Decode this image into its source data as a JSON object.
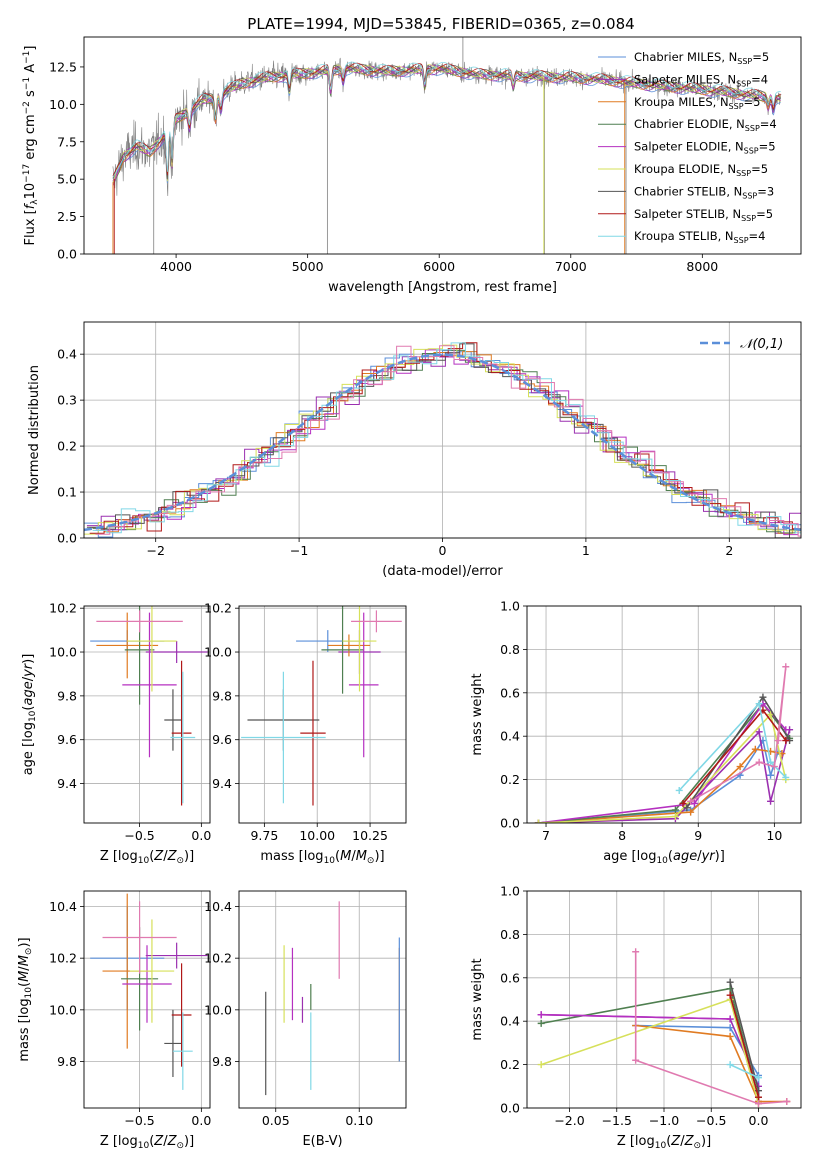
{
  "figure_title": "PLATE=1994, MJD=53845, FIBERID=0365, z=0.084",
  "colors": {
    "chabrier_miles": "#5b8fd9",
    "salpeter_miles": "#9b30b0",
    "kroupa_miles": "#e07b22",
    "chabrier_elodie": "#4f7f50",
    "salpeter_elodie": "#b530c0",
    "kroupa_elodie": "#d6e05a",
    "chabrier_stelib": "#555555",
    "salpeter_stelib": "#b01818",
    "kroupa_stelib": "#80d8e6",
    "data": "#808080",
    "gauss": "#5b8fd9",
    "pink": "#e07ab0"
  },
  "chart_data": [
    {
      "id": "spectrum",
      "type": "line",
      "xlabel": "wavelength [Angstrom, rest frame]",
      "ylabel": "Flux [f_λ 10^-17 erg cm^-2 s^-1 A^-1]",
      "xlim": [
        3300,
        8750
      ],
      "ylim": [
        0,
        14.5
      ],
      "xticks": [
        4000,
        5000,
        6000,
        7000,
        8000
      ],
      "yticks": [
        0.0,
        2.5,
        5.0,
        7.5,
        10.0,
        12.5
      ],
      "legend_position": "top-right",
      "legend": [
        {
          "label": "Chabrier MILES, N",
          "sub": "SSP",
          "suffix": "=5",
          "color_key": "chabrier_miles"
        },
        {
          "label": "Salpeter MILES, N",
          "sub": "SSP",
          "suffix": "=4",
          "color_key": "salpeter_miles"
        },
        {
          "label": "Kroupa MILES, N",
          "sub": "SSP",
          "suffix": "=5",
          "color_key": "kroupa_miles"
        },
        {
          "label": "Chabrier ELODIE, N",
          "sub": "SSP",
          "suffix": "=4",
          "color_key": "chabrier_elodie"
        },
        {
          "label": "Salpeter ELODIE, N",
          "sub": "SSP",
          "suffix": "=5",
          "color_key": "salpeter_elodie"
        },
        {
          "label": "Kroupa ELODIE, N",
          "sub": "SSP",
          "suffix": "=5",
          "color_key": "kroupa_elodie"
        },
        {
          "label": "Chabrier STELIB, N",
          "sub": "SSP",
          "suffix": "=3",
          "color_key": "chabrier_stelib"
        },
        {
          "label": "Salpeter STELIB, N",
          "sub": "SSP",
          "suffix": "=5",
          "color_key": "salpeter_stelib"
        },
        {
          "label": "Kroupa STELIB, N",
          "sub": "SSP",
          "suffix": "=4",
          "color_key": "kroupa_stelib"
        }
      ],
      "continuum": [
        [
          3520,
          4.8
        ],
        [
          3600,
          6.5
        ],
        [
          3700,
          7.2
        ],
        [
          3800,
          6.8
        ],
        [
          3900,
          7.8
        ],
        [
          4000,
          9.0
        ],
        [
          4100,
          9.6
        ],
        [
          4200,
          10.3
        ],
        [
          4300,
          10.4
        ],
        [
          4400,
          11.0
        ],
        [
          4500,
          11.4
        ],
        [
          4700,
          11.8
        ],
        [
          5000,
          12.1
        ],
        [
          5300,
          12.4
        ],
        [
          5600,
          12.2
        ],
        [
          6000,
          12.4
        ],
        [
          6300,
          12.0
        ],
        [
          6600,
          11.9
        ],
        [
          7000,
          11.8
        ],
        [
          7300,
          11.6
        ],
        [
          7600,
          11.3
        ],
        [
          8000,
          11.0
        ],
        [
          8300,
          10.7
        ],
        [
          8600,
          10.4
        ]
      ],
      "spikes_down": [
        {
          "x": 3830,
          "y": 0.0
        },
        {
          "x": 5150,
          "y": 0.0
        },
        {
          "x": 6800,
          "y": 0.0
        },
        {
          "x": 7420,
          "y": 0.0
        }
      ],
      "spikes_up": [
        {
          "x": 6180,
          "y": 14.5
        }
      ]
    },
    {
      "id": "residuals",
      "type": "line",
      "xlabel": "(data-model)/error",
      "ylabel": "Normed distribution",
      "xlim": [
        -2.5,
        2.5
      ],
      "ylim": [
        0,
        0.47
      ],
      "xticks": [
        -2,
        -1,
        0,
        1,
        2
      ],
      "yticks": [
        0.0,
        0.1,
        0.2,
        0.3,
        0.4
      ],
      "legend": "𝒩(0,1)",
      "legend_position": "top-right",
      "bin_width": 0.1
    },
    {
      "id": "age_vs_Z",
      "type": "scatter",
      "xlabel": "Z [log10(Z/Z⊙)]",
      "ylabel": "age  [log10(age/yr)]",
      "xlim": [
        -0.95,
        0.07
      ],
      "ylim": [
        9.22,
        10.21
      ],
      "xticks": [
        -0.5,
        0.0
      ],
      "xticklabels": [
        "−0.5",
        "0.0"
      ],
      "yticks": [
        9.4,
        9.6,
        9.8,
        10.0,
        10.2
      ],
      "points": [
        {
          "c": "chabrier_miles",
          "x": -0.6,
          "xe": 0.3,
          "y": 10.05,
          "ye": 0.05
        },
        {
          "c": "salpeter_miles",
          "x": -0.2,
          "xe": 0.25,
          "y": 10.0,
          "ye": 0.05
        },
        {
          "c": "kroupa_miles",
          "x": -0.6,
          "xe": 0.25,
          "y": 10.03,
          "ye": 0.15
        },
        {
          "c": "chabrier_elodie",
          "x": -0.5,
          "xe": 0.12,
          "y": 10.01,
          "ye": 0.25
        },
        {
          "c": "salpeter_elodie",
          "x": -0.42,
          "xe": 0.22,
          "y": 9.85,
          "ye": 0.33
        },
        {
          "c": "kroupa_elodie",
          "x": -0.4,
          "xe": 0.2,
          "y": 10.05,
          "ye": 0.23
        },
        {
          "c": "chabrier_stelib",
          "x": -0.23,
          "xe": 0.07,
          "y": 9.69,
          "ye": 0.14
        },
        {
          "c": "salpeter_stelib",
          "x": -0.16,
          "xe": 0.08,
          "y": 9.63,
          "ye": 0.33
        },
        {
          "c": "kroupa_stelib",
          "x": -0.15,
          "xe": 0.1,
          "y": 9.61,
          "ye": 0.3
        },
        {
          "c": "pink",
          "x": -0.5,
          "xe": 0.35,
          "y": 10.14,
          "ye": 0.05
        }
      ]
    },
    {
      "id": "age_vs_mass",
      "type": "scatter",
      "xlabel": "mass [log10(M/M⊙)]",
      "ylabel": "",
      "xlim": [
        9.63,
        10.42
      ],
      "ylim": [
        9.22,
        10.21
      ],
      "xticks": [
        9.75,
        10.0,
        10.25
      ],
      "xticklabels": [
        "9.75",
        "10.00",
        "10.25"
      ],
      "yticks": [
        9.4,
        9.6,
        9.8,
        10.0,
        10.2
      ],
      "points": [
        {
          "c": "chabrier_miles",
          "x": 10.05,
          "xe": 0.15,
          "y": 10.05,
          "ye": 0.05
        },
        {
          "c": "salpeter_miles",
          "x": 10.2,
          "xe": 0.1,
          "y": 10.0,
          "ye": 0.1
        },
        {
          "c": "kroupa_miles",
          "x": 10.15,
          "xe": 0.1,
          "y": 10.03,
          "ye": 0.05
        },
        {
          "c": "chabrier_elodie",
          "x": 10.12,
          "xe": 0.1,
          "y": 10.01,
          "ye": 0.2
        },
        {
          "c": "salpeter_elodie",
          "x": 10.22,
          "xe": 0.07,
          "y": 9.85,
          "ye": 0.33
        },
        {
          "c": "kroupa_elodie",
          "x": 10.2,
          "xe": 0.08,
          "y": 10.05,
          "ye": 0.23
        },
        {
          "c": "chabrier_stelib",
          "x": 9.84,
          "xe": 0.17,
          "y": 9.69,
          "ye": 0.14
        },
        {
          "c": "salpeter_stelib",
          "x": 9.98,
          "xe": 0.06,
          "y": 9.63,
          "ye": 0.33
        },
        {
          "c": "kroupa_stelib",
          "x": 9.84,
          "xe": 0.2,
          "y": 9.61,
          "ye": 0.3
        },
        {
          "c": "pink",
          "x": 10.28,
          "xe": 0.12,
          "y": 10.14,
          "ye": 0.05
        }
      ]
    },
    {
      "id": "weight_vs_age",
      "type": "line",
      "xlabel": "age  [log10(age/yr)]",
      "ylabel": "mass weight",
      "xlim": [
        6.75,
        10.35
      ],
      "ylim": [
        0,
        1.0
      ],
      "xticks": [
        7,
        8,
        9,
        10
      ],
      "yticks": [
        0.0,
        0.2,
        0.4,
        0.6,
        0.8,
        1.0
      ],
      "series": [
        {
          "c": "chabrier_miles",
          "pts": [
            [
              6.9,
              0.0
            ],
            [
              8.9,
              0.06
            ],
            [
              9.55,
              0.22
            ],
            [
              9.85,
              0.38
            ],
            [
              9.95,
              0.22
            ],
            [
              10.05,
              0.33
            ]
          ]
        },
        {
          "c": "salpeter_miles",
          "pts": [
            [
              6.9,
              0.0
            ],
            [
              8.7,
              0.02
            ],
            [
              9.8,
              0.42
            ],
            [
              9.95,
              0.1
            ],
            [
              10.2,
              0.43
            ]
          ]
        },
        {
          "c": "kroupa_miles",
          "pts": [
            [
              6.9,
              0.0
            ],
            [
              8.9,
              0.05
            ],
            [
              9.55,
              0.26
            ],
            [
              9.75,
              0.34
            ],
            [
              9.95,
              0.33
            ],
            [
              10.1,
              0.32
            ]
          ]
        },
        {
          "c": "chabrier_elodie",
          "pts": [
            [
              6.9,
              0.0
            ],
            [
              8.7,
              0.06
            ],
            [
              9.85,
              0.55
            ],
            [
              10.2,
              0.39
            ]
          ]
        },
        {
          "c": "salpeter_elodie",
          "pts": [
            [
              6.9,
              0.0
            ],
            [
              8.95,
              0.09
            ],
            [
              9.85,
              0.55
            ],
            [
              10.15,
              0.43
            ]
          ]
        },
        {
          "c": "kroupa_elodie",
          "pts": [
            [
              6.9,
              0.0
            ],
            [
              8.7,
              0.03
            ],
            [
              9.95,
              0.5
            ],
            [
              10.15,
              0.2
            ]
          ]
        },
        {
          "c": "chabrier_stelib",
          "pts": [
            [
              8.85,
              0.07
            ],
            [
              9.85,
              0.58
            ],
            [
              10.2,
              0.38
            ]
          ]
        },
        {
          "c": "salpeter_stelib",
          "pts": [
            [
              8.8,
              0.09
            ],
            [
              9.85,
              0.52
            ],
            [
              10.15,
              0.38
            ]
          ]
        },
        {
          "c": "kroupa_stelib",
          "pts": [
            [
              8.75,
              0.15
            ],
            [
              9.8,
              0.55
            ],
            [
              9.95,
              0.28
            ],
            [
              10.15,
              0.21
            ]
          ]
        },
        {
          "c": "pink",
          "pts": [
            [
              8.9,
              0.1
            ],
            [
              9.8,
              0.28
            ],
            [
              10.0,
              0.26
            ],
            [
              10.15,
              0.72
            ],
            [
              10.05,
              0.38
            ]
          ]
        }
      ]
    },
    {
      "id": "mass_vs_Z",
      "type": "scatter",
      "xlabel": "Z [log10(Z/Z⊙)]",
      "ylabel": "mass [log10(M/M⊙)]",
      "xlim": [
        -0.95,
        0.07
      ],
      "ylim": [
        9.62,
        10.46
      ],
      "xticks": [
        -0.5,
        0.0
      ],
      "xticklabels": [
        "−0.5",
        "0.0"
      ],
      "yticks": [
        9.8,
        10.0,
        10.2,
        10.4
      ],
      "points": [
        {
          "c": "chabrier_miles",
          "x": -0.6,
          "xe": 0.3,
          "y": 10.2,
          "ye": 0.2
        },
        {
          "c": "salpeter_miles",
          "x": -0.2,
          "xe": 0.25,
          "y": 10.21,
          "ye": 0.05
        },
        {
          "c": "kroupa_miles",
          "x": -0.6,
          "xe": 0.2,
          "y": 10.15,
          "ye": 0.3
        },
        {
          "c": "chabrier_elodie",
          "x": -0.5,
          "xe": 0.15,
          "y": 10.12,
          "ye": 0.2
        },
        {
          "c": "salpeter_elodie",
          "x": -0.44,
          "xe": 0.2,
          "y": 10.1,
          "ye": 0.15
        },
        {
          "c": "kroupa_elodie",
          "x": -0.4,
          "xe": 0.18,
          "y": 10.15,
          "ye": 0.2
        },
        {
          "c": "chabrier_stelib",
          "x": -0.23,
          "xe": 0.07,
          "y": 9.87,
          "ye": 0.13
        },
        {
          "c": "salpeter_stelib",
          "x": -0.16,
          "xe": 0.08,
          "y": 9.98,
          "ye": 0.2
        },
        {
          "c": "kroupa_stelib",
          "x": -0.15,
          "xe": 0.08,
          "y": 9.84,
          "ye": 0.15
        },
        {
          "c": "pink",
          "x": -0.5,
          "xe": 0.3,
          "y": 10.28,
          "ye": 0.14
        }
      ]
    },
    {
      "id": "mass_vs_EBV",
      "type": "scatter",
      "xlabel": "E(B-V)",
      "ylabel": "",
      "xlim": [
        0.028,
        0.128
      ],
      "ylim": [
        9.62,
        10.46
      ],
      "xticks": [
        0.05,
        0.1
      ],
      "xticklabels": [
        "0.05",
        "0.10"
      ],
      "yticks": [
        9.8,
        10.0,
        10.2,
        10.4
      ],
      "points": [
        {
          "c": "chabrier_stelib",
          "x": 0.044,
          "xe": 0,
          "y": 9.87,
          "ye": 0.2
        },
        {
          "c": "kroupa_elodie",
          "x": 0.055,
          "xe": 0,
          "y": 10.1,
          "ye": 0.15
        },
        {
          "c": "salpeter_elodie",
          "x": 0.06,
          "xe": 0,
          "y": 10.1,
          "ye": 0.14
        },
        {
          "c": "kroupa_stelib",
          "x": 0.071,
          "xe": 0,
          "y": 9.84,
          "ye": 0.15
        },
        {
          "c": "chabrier_elodie",
          "x": 0.071,
          "xe": 0,
          "y": 10.05,
          "ye": 0.05
        },
        {
          "c": "salpeter_miles",
          "x": 0.066,
          "xe": 0,
          "y": 10.0,
          "ye": 0.05
        },
        {
          "c": "pink",
          "x": 0.088,
          "xe": 0,
          "y": 10.27,
          "ye": 0.15
        },
        {
          "c": "kroupa_miles",
          "x": 0.124,
          "xe": 0,
          "y": 10.02,
          "ye": 0.22
        },
        {
          "c": "chabrier_miles",
          "x": 0.124,
          "xe": 0,
          "y": 10.04,
          "ye": 0.24
        }
      ]
    },
    {
      "id": "weight_vs_Z",
      "type": "line",
      "xlabel": "Z [log10(Z/Z⊙)]",
      "ylabel": "mass weight",
      "xlim": [
        -2.45,
        0.45
      ],
      "ylim": [
        0,
        1.0
      ],
      "xticks": [
        -2.0,
        -1.5,
        -1.0,
        -0.5,
        0.0
      ],
      "xticklabels": [
        "−2.0",
        "−1.5",
        "−1.0",
        "−0.5",
        "0.0"
      ],
      "yticks": [
        0.0,
        0.2,
        0.4,
        0.6,
        0.8,
        1.0
      ],
      "series": [
        {
          "c": "chabrier_miles",
          "pts": [
            [
              -1.3,
              0.38
            ],
            [
              -0.3,
              0.37
            ],
            [
              0.0,
              0.15
            ],
            [
              0.0,
              0.05
            ]
          ]
        },
        {
          "c": "salpeter_miles",
          "pts": [
            [
              -2.3,
              0.43
            ],
            [
              -0.3,
              0.41
            ],
            [
              0.0,
              0.1
            ],
            [
              0.0,
              0.03
            ]
          ]
        },
        {
          "c": "kroupa_miles",
          "pts": [
            [
              -1.3,
              0.38
            ],
            [
              -0.3,
              0.33
            ],
            [
              0.0,
              0.03
            ],
            [
              0.3,
              0.03
            ]
          ]
        },
        {
          "c": "chabrier_elodie",
          "pts": [
            [
              -2.3,
              0.39
            ],
            [
              -0.3,
              0.55
            ],
            [
              0.0,
              0.05
            ]
          ]
        },
        {
          "c": "salpeter_elodie",
          "pts": [
            [
              -2.3,
              0.43
            ],
            [
              -0.3,
              0.41
            ]
          ]
        },
        {
          "c": "kroupa_elodie",
          "pts": [
            [
              -2.3,
              0.2
            ],
            [
              -0.3,
              0.5
            ],
            [
              0.0,
              0.02
            ]
          ]
        },
        {
          "c": "chabrier_stelib",
          "pts": [
            [
              -0.3,
              0.58
            ],
            [
              0.0,
              0.08
            ]
          ]
        },
        {
          "c": "salpeter_stelib",
          "pts": [
            [
              -0.3,
              0.52
            ],
            [
              0.0,
              0.05
            ]
          ]
        },
        {
          "c": "kroupa_stelib",
          "pts": [
            [
              -0.3,
              0.2
            ],
            [
              0.0,
              0.14
            ]
          ]
        },
        {
          "c": "pink",
          "pts": [
            [
              -1.3,
              0.72
            ],
            [
              -1.3,
              0.22
            ],
            [
              0.0,
              0.02
            ],
            [
              0.3,
              0.03
            ]
          ]
        }
      ]
    }
  ]
}
